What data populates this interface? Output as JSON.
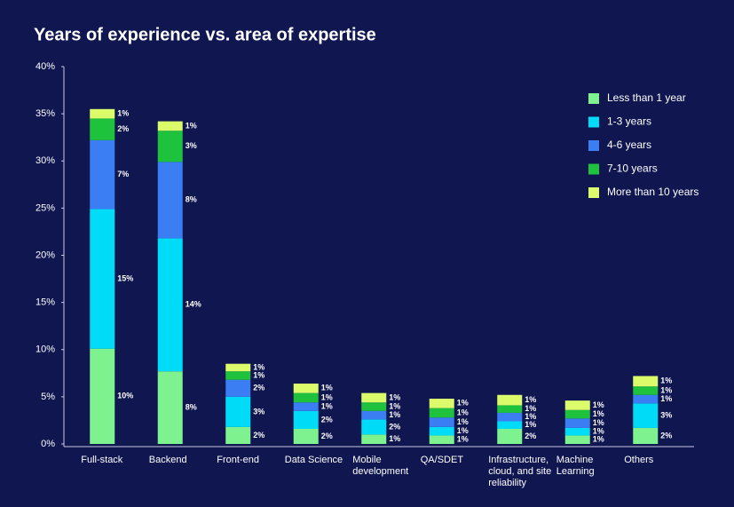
{
  "chart_data": {
    "type": "stacked_bar",
    "title": "Years of experience vs. area of expertise",
    "categories": [
      "Full-stack",
      "Backend",
      "Front-end",
      "Data Science",
      "Mobile development",
      "QA/SDET",
      "Infrastructure, cloud, and site reliability",
      "Machine Learning",
      "Others"
    ],
    "series": [
      {
        "name": "Less than 1 year",
        "color": "#7df28f",
        "values": [
          10.1,
          7.7,
          1.8,
          1.6,
          1.0,
          0.9,
          1.6,
          0.9,
          1.7
        ],
        "value_labels": [
          "10%",
          "8%",
          "2%",
          "2%",
          "1%",
          "1%",
          "2%",
          "1%",
          "2%"
        ]
      },
      {
        "name": "1-3 years",
        "color": "#00dbf8",
        "values": [
          14.8,
          14.1,
          3.2,
          1.9,
          1.6,
          0.9,
          0.8,
          0.8,
          2.6
        ],
        "value_labels": [
          "15%",
          "14%",
          "3%",
          "2%",
          "2%",
          "1%",
          "1%",
          "1%",
          "3%"
        ]
      },
      {
        "name": "4-6 years",
        "color": "#3b7df2",
        "values": [
          7.3,
          8.1,
          1.8,
          0.9,
          0.9,
          1.0,
          0.9,
          1.0,
          0.9
        ],
        "value_labels": [
          "7%",
          "8%",
          "2%",
          "1%",
          "1%",
          "1%",
          "1%",
          "1%",
          "1%"
        ]
      },
      {
        "name": "7-10 years",
        "color": "#1fc23d",
        "values": [
          2.3,
          3.3,
          0.9,
          1.0,
          0.9,
          1.0,
          0.8,
          0.9,
          0.9
        ],
        "value_labels": [
          "2%",
          "3%",
          "1%",
          "1%",
          "1%",
          "1%",
          "1%",
          "1%",
          "1%"
        ]
      },
      {
        "name": "More than 10 years",
        "color": "#dcfb6b",
        "values": [
          1.0,
          1.0,
          0.8,
          1.0,
          1.0,
          1.0,
          1.1,
          1.0,
          1.1
        ],
        "value_labels": [
          "1%",
          "1%",
          "1%",
          "1%",
          "1%",
          "1%",
          "1%",
          "1%",
          "1%"
        ]
      }
    ],
    "ylim": [
      0,
      40
    ],
    "yticks": [
      {
        "value": 0,
        "label": "0%"
      },
      {
        "value": 5,
        "label": "5%"
      },
      {
        "value": 10,
        "label": "10%"
      },
      {
        "value": 15,
        "label": "15%"
      },
      {
        "value": 20,
        "label": "20%"
      },
      {
        "value": 25,
        "label": "25%"
      },
      {
        "value": 30,
        "label": "30%"
      },
      {
        "value": 35,
        "label": "35%"
      },
      {
        "value": 40,
        "label": "40%"
      }
    ],
    "legend": "top-right"
  }
}
